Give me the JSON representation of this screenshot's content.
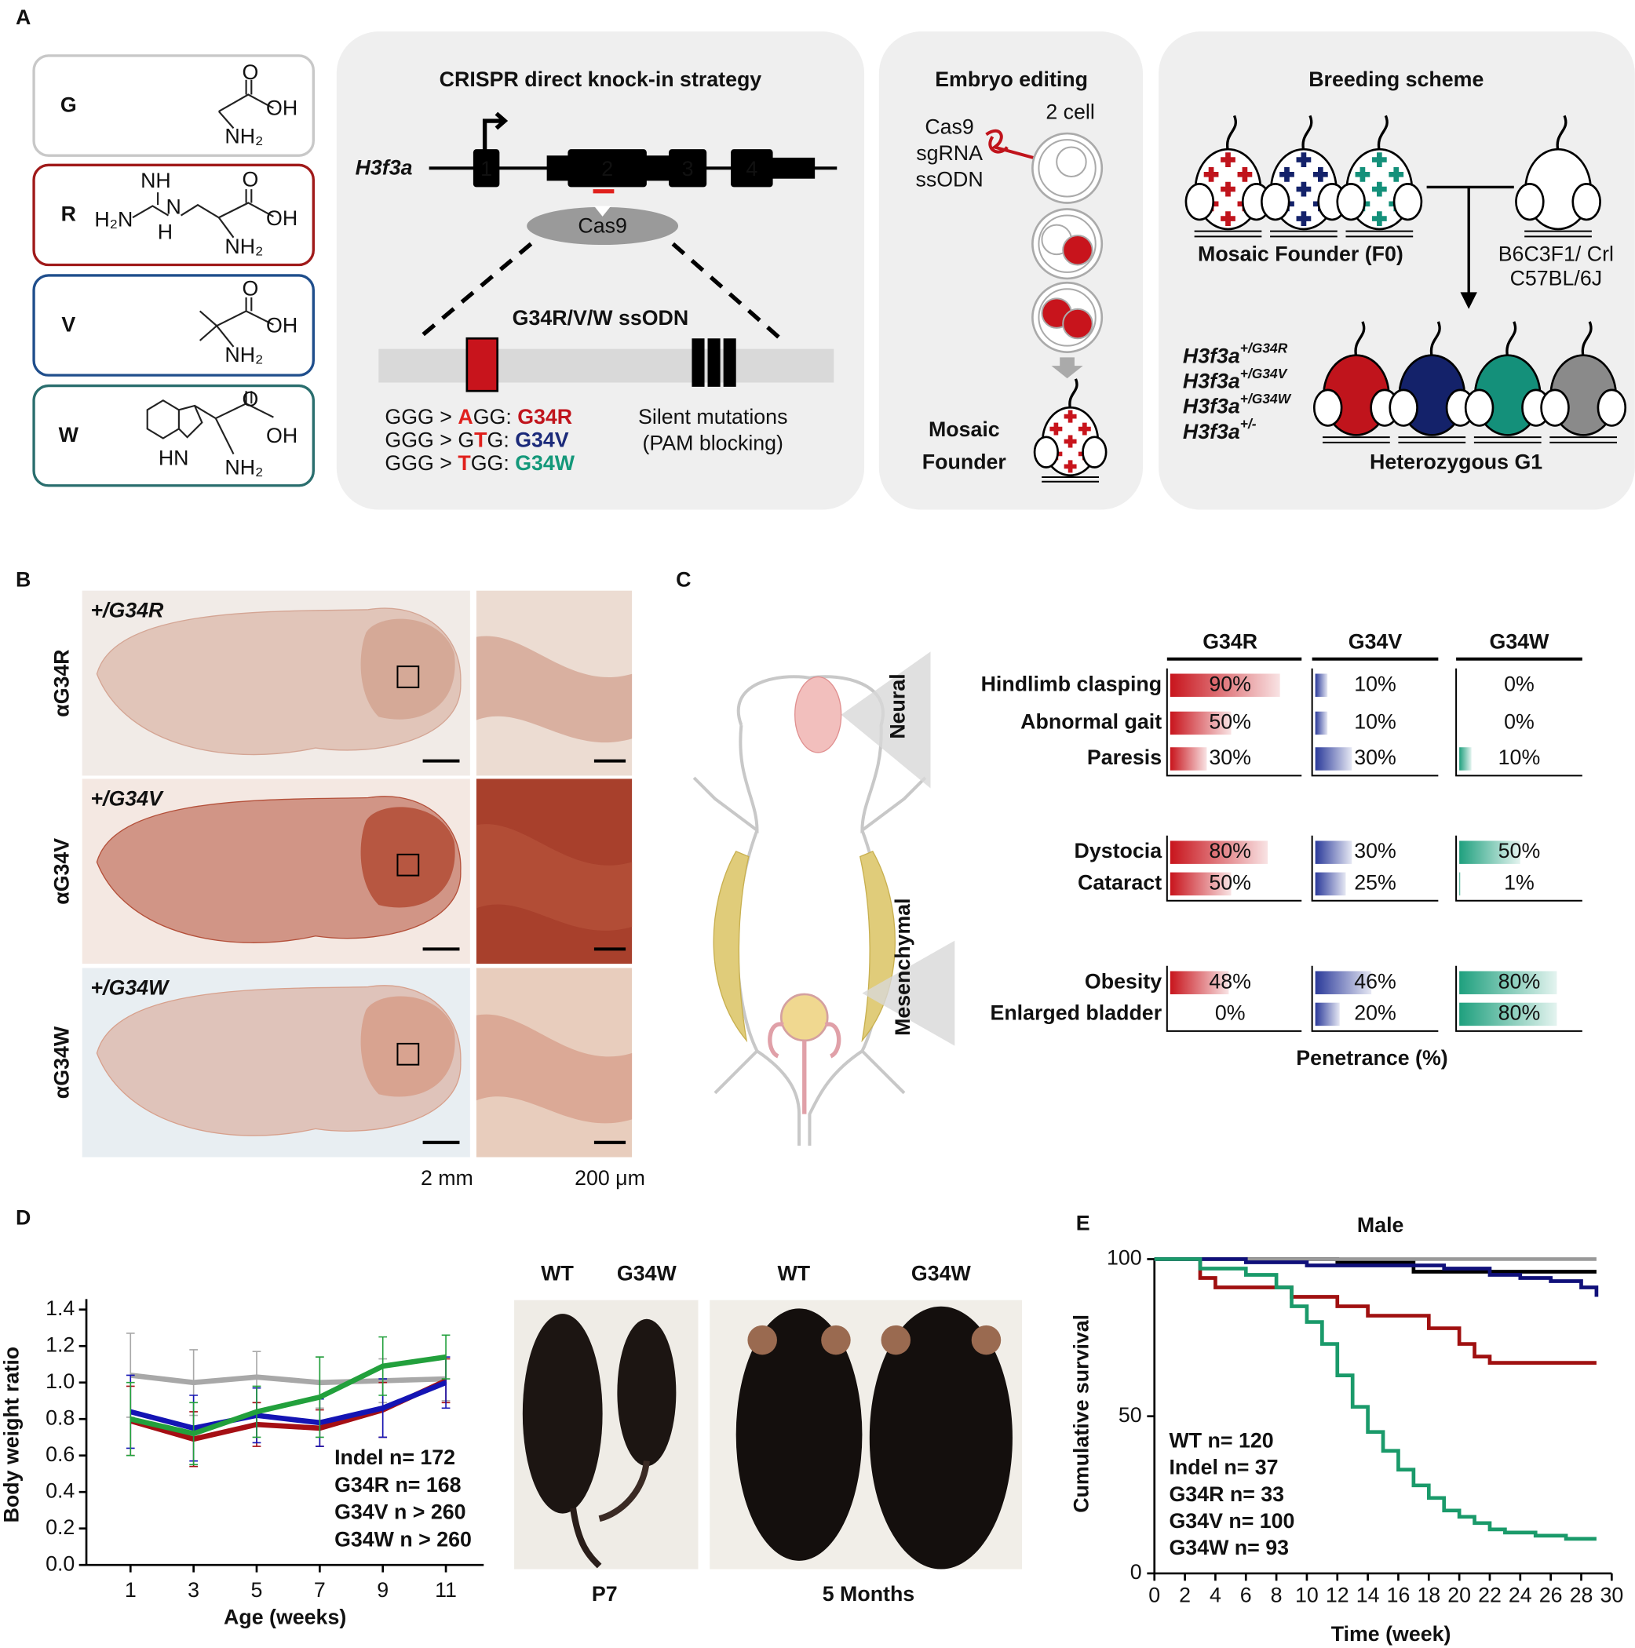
{
  "panel_labels": [
    "A",
    "B",
    "C",
    "D",
    "E"
  ],
  "amino_acids": [
    {
      "letter": "G",
      "atoms": [
        "O",
        "OH",
        "NH₂"
      ]
    },
    {
      "letter": "R",
      "atoms": [
        "NH",
        "H₂N",
        "N",
        "H",
        "O",
        "OH",
        "NH₂"
      ]
    },
    {
      "letter": "V",
      "atoms": [
        "O",
        "OH",
        "NH₂"
      ]
    },
    {
      "letter": "W",
      "atoms": [
        "HN",
        "O",
        "OH",
        "NH₂"
      ]
    }
  ],
  "crispr": {
    "title": "CRISPR direct knock-in strategy",
    "gene": "H3f3a",
    "exons": [
      "1",
      "2",
      "3",
      "4"
    ],
    "enzyme": "Cas9",
    "donor": "G34R/V/W ssODN",
    "mutations": [
      [
        {
          "text": "GGG > "
        },
        {
          "text": "A",
          "color": "#e0201c"
        },
        {
          "text": "GG: "
        },
        {
          "text": "G34R",
          "color": "#c0141c"
        }
      ],
      [
        {
          "text": "GGG > G"
        },
        {
          "text": "T",
          "color": "#e0201c"
        },
        {
          "text": "G: "
        },
        {
          "text": "G34V",
          "color": "#1b2a7a"
        }
      ],
      [
        {
          "text": "GGG > "
        },
        {
          "text": "T",
          "color": "#e0201c"
        },
        {
          "text": "GG: "
        },
        {
          "text": "G34W",
          "color": "#14987a"
        }
      ]
    ],
    "silent": [
      "Silent mutations",
      "(PAM blocking)"
    ]
  },
  "embryo": {
    "title": "Embryo editing",
    "stage": "2 cell",
    "reagents": [
      "Cas9",
      "sgRNA",
      "ssODN"
    ],
    "result": [
      "Mosaic",
      "Founder"
    ]
  },
  "breeding": {
    "title": "Breeding scheme",
    "founder": "Mosaic Founder (F0)",
    "strains": [
      "B6C3F1/ Crl",
      "C57BL/6J"
    ],
    "genotypes": [
      {
        "gene": "H3f3a",
        "allele": "+/G34R",
        "color": "#c0141c"
      },
      {
        "gene": "H3f3a",
        "allele": "+/G34V",
        "color": "#14226a"
      },
      {
        "gene": "H3f3a",
        "allele": "+/G34W",
        "color": "#14907a"
      },
      {
        "gene": "H3f3a",
        "allele": "+/-",
        "color": "#8a8a8a"
      }
    ],
    "offspring": "Heterozygous G1"
  },
  "histology": {
    "genotypes": [
      "+/G34R",
      "+/G34V",
      "+/G34W"
    ],
    "antibodies": [
      "αG34R",
      "αG34V",
      "αG34W"
    ],
    "scale_bars": [
      "2 mm",
      "200 μm"
    ]
  },
  "phenotype_illustration": {
    "labels": [
      "Neural",
      "Mesenchymal"
    ]
  },
  "photos": {
    "labels": [
      "WT",
      "G34W",
      "WT",
      "G34W"
    ],
    "ages": [
      "P7",
      "5 Months"
    ]
  },
  "chart_data": [
    {
      "type": "penetrance",
      "xlabel": "Penetrance (%)",
      "xlim": [
        0,
        100
      ],
      "categories": [
        "Hindlimb clasping",
        "Abnormal gait",
        "Paresis",
        "Dystocia",
        "Cataract",
        "Obesity",
        "Enlarged bladder"
      ],
      "series": [
        {
          "name": "G34R",
          "color": "#c8141c",
          "values": [
            90,
            50,
            30,
            80,
            50,
            48,
            0
          ],
          "value_labels": [
            "90%",
            "50%",
            "30%",
            "80%",
            "50%",
            "48%",
            "0%"
          ]
        },
        {
          "name": "G34V",
          "color": "#2b3a9a",
          "values": [
            10,
            10,
            30,
            30,
            25,
            46,
            20
          ],
          "value_labels": [
            "10%",
            "10%",
            "30%",
            "30%",
            "25%",
            "46%",
            "20%"
          ]
        },
        {
          "name": "G34W",
          "color": "#1fa07e",
          "values": [
            0,
            0,
            10,
            50,
            1,
            80,
            80
          ],
          "value_labels": [
            "0%",
            "0%",
            "10%",
            "50%",
            "1%",
            "80%",
            "80%"
          ]
        }
      ]
    },
    {
      "type": "line",
      "xlabel": "Age (weeks)",
      "ylabel": "Body weight ratio",
      "x": [
        1,
        3,
        5,
        7,
        9,
        11
      ],
      "xlim": [
        -0.4,
        12.2
      ],
      "xticks": [
        1,
        3,
        5,
        7,
        9,
        11
      ],
      "ylim": [
        0,
        1.4
      ],
      "yticks": [
        {
          "value": 0,
          "label": "0.0"
        },
        0.2,
        0.4,
        0.6,
        0.8,
        {
          "value": 1,
          "label": "1.0"
        },
        1.2,
        1.4
      ],
      "series": [
        {
          "name": "Indel n= 172",
          "color": "#a8a8a8",
          "values": [
            1.04,
            1.0,
            1.03,
            1.0,
            1.01,
            1.02
          ],
          "errors": [
            0.23,
            0.18,
            0.14,
            0.14,
            0.12,
            0.12
          ]
        },
        {
          "name": "G34R n= 168",
          "color": "#a50f14",
          "values": [
            0.79,
            0.69,
            0.77,
            0.75,
            0.85,
            1.01
          ],
          "errors": [
            0.19,
            0.15,
            0.12,
            0.1,
            0.15,
            0.12
          ]
        },
        {
          "name": "G34V n > 260",
          "color": "#1414b4",
          "values": [
            0.84,
            0.75,
            0.82,
            0.78,
            0.86,
            1.0
          ],
          "errors": [
            0.2,
            0.18,
            0.15,
            0.13,
            0.16,
            0.14
          ]
        },
        {
          "name": "G34W n > 260",
          "color": "#22a03c",
          "values": [
            0.8,
            0.72,
            0.84,
            0.92,
            1.09,
            1.14
          ],
          "errors": [
            0.2,
            0.17,
            0.14,
            0.22,
            0.16,
            0.12
          ]
        }
      ]
    },
    {
      "type": "step",
      "title": "Male",
      "xlabel": "Time (week)",
      "ylabel": "Cumulative survival",
      "xlim": [
        0,
        30
      ],
      "xticks": [
        0,
        2,
        4,
        6,
        8,
        10,
        12,
        14,
        16,
        18,
        20,
        22,
        24,
        26,
        28,
        30
      ],
      "ylim": [
        0,
        100
      ],
      "yticks": [
        0,
        50,
        100
      ],
      "series": [
        {
          "name": "WT n= 120",
          "color": "#000000",
          "x": [
            0,
            12,
            17,
            29
          ],
          "values": [
            100,
            99,
            96,
            96
          ]
        },
        {
          "name": "Indel n= 37",
          "color": "#999999",
          "x": [
            0,
            29
          ],
          "values": [
            100,
            100
          ]
        },
        {
          "name": "G34R n= 33",
          "color": "#a01010",
          "x": [
            0,
            3,
            4,
            9,
            12,
            14,
            18,
            20,
            21,
            22,
            29
          ],
          "values": [
            100,
            94,
            91,
            88,
            85,
            82,
            78,
            73,
            69,
            67,
            67
          ]
        },
        {
          "name": "G34V n= 100",
          "color": "#10107a",
          "x": [
            0,
            6,
            10,
            19,
            22,
            24,
            26,
            28,
            29
          ],
          "values": [
            100,
            99,
            98,
            97,
            95,
            94,
            93,
            91,
            88
          ]
        },
        {
          "name": "G34W n= 93",
          "color": "#1a9a6a",
          "x": [
            0,
            3,
            6,
            8,
            9,
            10,
            11,
            12,
            13,
            14,
            15,
            16,
            17,
            18,
            19,
            20,
            21,
            22,
            23,
            25,
            27,
            29
          ],
          "values": [
            100,
            97,
            95,
            91,
            85,
            80,
            73,
            63,
            53,
            45,
            39,
            33,
            28,
            24,
            20,
            18,
            16,
            14,
            13,
            12,
            11,
            11
          ]
        }
      ]
    }
  ]
}
